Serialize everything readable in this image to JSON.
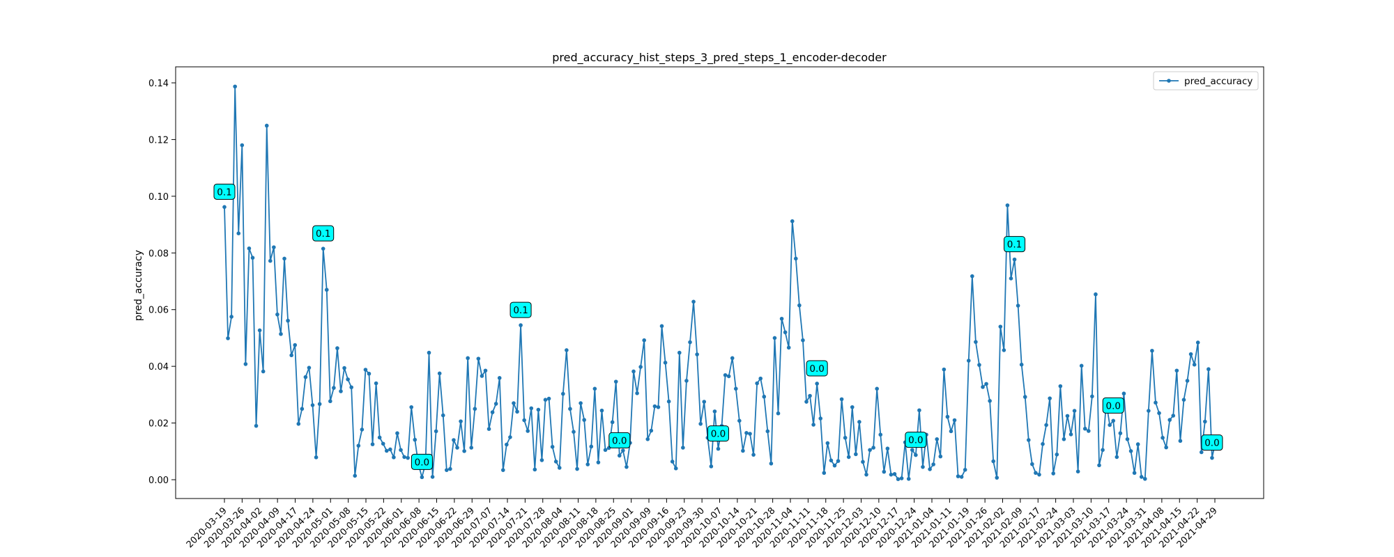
{
  "chart_data": {
    "type": "line",
    "title": "pred_accuracy_hist_steps_3_pred_steps_1_encoder-decoder",
    "xlabel": "",
    "ylabel": "pred_accuracy",
    "legend": {
      "placement": "top-right",
      "entries": [
        "pred_accuracy"
      ]
    },
    "ylim": [
      -0.007,
      0.145
    ],
    "yticks": [
      0.0,
      0.02,
      0.04,
      0.06,
      0.08,
      0.1,
      0.12,
      0.14
    ],
    "ytick_labels": [
      "0.00",
      "0.02",
      "0.04",
      "0.06",
      "0.08",
      "0.10",
      "0.12",
      "0.14"
    ],
    "xtick_labels": [
      "2020-03-19",
      "2020-03-26",
      "2020-04-02",
      "2020-04-09",
      "2020-04-17",
      "2020-04-24",
      "2020-05-01",
      "2020-05-08",
      "2020-05-15",
      "2020-05-22",
      "2020-06-01",
      "2020-06-08",
      "2020-06-15",
      "2020-06-22",
      "2020-06-29",
      "2020-07-07",
      "2020-07-14",
      "2020-07-21",
      "2020-07-28",
      "2020-08-04",
      "2020-08-11",
      "2020-08-18",
      "2020-08-25",
      "2020-09-01",
      "2020-09-09",
      "2020-09-16",
      "2020-09-23",
      "2020-09-30",
      "2020-10-07",
      "2020-10-14",
      "2020-10-21",
      "2020-10-28",
      "2020-11-04",
      "2020-11-11",
      "2020-11-18",
      "2020-11-25",
      "2020-12-03",
      "2020-12-10",
      "2020-12-17",
      "2020-12-24",
      "2021-01-04",
      "2021-01-11",
      "2021-01-19",
      "2021-01-26",
      "2021-02-02",
      "2021-02-09",
      "2021-02-17",
      "2021-02-24",
      "2021-03-03",
      "2021-03-10",
      "2021-03-17",
      "2021-03-24",
      "2021-03-31",
      "2021-04-08",
      "2021-04-15",
      "2021-04-22",
      "2021-04-29"
    ],
    "grid": false,
    "series": [
      {
        "name": "pred_accuracy",
        "color": "#1f77b4",
        "values": [
          0.0962,
          0.0499,
          0.0575,
          0.1387,
          0.0869,
          0.118,
          0.0408,
          0.0816,
          0.0783,
          0.019,
          0.0527,
          0.0382,
          0.1249,
          0.0772,
          0.082,
          0.0583,
          0.0514,
          0.078,
          0.0561,
          0.0439,
          0.0475,
          0.0197,
          0.025,
          0.0362,
          0.0395,
          0.0263,
          0.0079,
          0.0267,
          0.0815,
          0.067,
          0.0277,
          0.0324,
          0.0464,
          0.0312,
          0.0394,
          0.0354,
          0.0326,
          0.0014,
          0.012,
          0.0177,
          0.0388,
          0.0374,
          0.0125,
          0.034,
          0.0149,
          0.0127,
          0.0102,
          0.0107,
          0.0079,
          0.0164,
          0.0105,
          0.008,
          0.0077,
          0.0256,
          0.0141,
          0.0054,
          0.0009,
          0.0056,
          0.0448,
          0.001,
          0.0171,
          0.0375,
          0.0227,
          0.0034,
          0.0038,
          0.014,
          0.0113,
          0.0206,
          0.0101,
          0.0429,
          0.0113,
          0.025,
          0.0427,
          0.0366,
          0.0385,
          0.0179,
          0.0238,
          0.0268,
          0.0359,
          0.0034,
          0.0124,
          0.015,
          0.027,
          0.024,
          0.0545,
          0.021,
          0.0172,
          0.0252,
          0.0036,
          0.0247,
          0.0069,
          0.0282,
          0.0286,
          0.0116,
          0.0064,
          0.0042,
          0.0303,
          0.0457,
          0.025,
          0.0169,
          0.0038,
          0.027,
          0.0211,
          0.0054,
          0.0117,
          0.0321,
          0.0061,
          0.0244,
          0.0105,
          0.0112,
          0.0203,
          0.0346,
          0.0085,
          0.0103,
          0.0045,
          0.013,
          0.0382,
          0.0305,
          0.0398,
          0.0492,
          0.0143,
          0.0173,
          0.0259,
          0.0256,
          0.0542,
          0.0413,
          0.0276,
          0.0064,
          0.004,
          0.0448,
          0.0113,
          0.0349,
          0.0485,
          0.0628,
          0.0442,
          0.0197,
          0.0275,
          0.0148,
          0.0047,
          0.0241,
          0.0109,
          0.019,
          0.0369,
          0.0365,
          0.0429,
          0.0321,
          0.0208,
          0.0102,
          0.0165,
          0.0162,
          0.0088,
          0.034,
          0.0357,
          0.0293,
          0.0171,
          0.0057,
          0.05,
          0.0234,
          0.0568,
          0.052,
          0.0466,
          0.0912,
          0.078,
          0.0615,
          0.0492,
          0.0275,
          0.0296,
          0.0194,
          0.0339,
          0.0216,
          0.0024,
          0.0129,
          0.0068,
          0.005,
          0.0066,
          0.0284,
          0.0148,
          0.008,
          0.0256,
          0.009,
          0.0204,
          0.0063,
          0.0018,
          0.0105,
          0.0113,
          0.0321,
          0.0159,
          0.0028,
          0.011,
          0.0018,
          0.002,
          0.0002,
          0.0005,
          0.0132,
          0.0003,
          0.0105,
          0.0087,
          0.0245,
          0.0045,
          0.0159,
          0.0037,
          0.0054,
          0.0143,
          0.0082,
          0.0389,
          0.0222,
          0.0171,
          0.021,
          0.0012,
          0.001,
          0.0035,
          0.042,
          0.0718,
          0.0486,
          0.0405,
          0.0327,
          0.0338,
          0.0278,
          0.0065,
          0.0007,
          0.054,
          0.0457,
          0.0968,
          0.071,
          0.0777,
          0.0614,
          0.0406,
          0.0292,
          0.014,
          0.0055,
          0.0024,
          0.0018,
          0.0126,
          0.0193,
          0.0287,
          0.0022,
          0.0089,
          0.033,
          0.0143,
          0.0225,
          0.016,
          0.0243,
          0.0029,
          0.0402,
          0.018,
          0.0172,
          0.0294,
          0.0654,
          0.0051,
          0.0105,
          0.0272,
          0.0193,
          0.0208,
          0.008,
          0.0164,
          0.0304,
          0.0143,
          0.0101,
          0.0024,
          0.0125,
          0.001,
          0.0003,
          0.0243,
          0.0455,
          0.0272,
          0.0235,
          0.0148,
          0.0114,
          0.0211,
          0.0226,
          0.0385,
          0.0137,
          0.0282,
          0.0349,
          0.0443,
          0.0406,
          0.0484,
          0.0097,
          0.0205,
          0.039,
          0.0077,
          0.0137
        ]
      }
    ],
    "annotations": [
      {
        "index": 0,
        "text": "0.1"
      },
      {
        "index": 28,
        "text": "0.1"
      },
      {
        "index": 56,
        "text": "0.0"
      },
      {
        "index": 84,
        "text": "0.1"
      },
      {
        "index": 112,
        "text": "0.0"
      },
      {
        "index": 140,
        "text": "0.0"
      },
      {
        "index": 168,
        "text": "0.0"
      },
      {
        "index": 196,
        "text": "0.0"
      },
      {
        "index": 224,
        "text": "0.1"
      },
      {
        "index": 252,
        "text": "0.0"
      },
      {
        "index": 280,
        "text": "0.0"
      }
    ],
    "annotation_style": {
      "box_color": "#00ffff",
      "edge_color": "#000000"
    }
  }
}
